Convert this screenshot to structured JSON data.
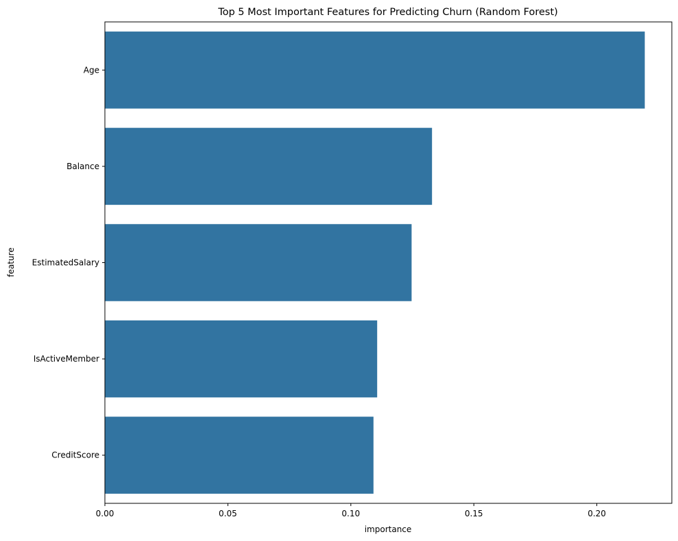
{
  "chart_data": {
    "type": "bar",
    "orientation": "horizontal",
    "title": "Top 5 Most Important Features for Predicting Churn (Random Forest)",
    "xlabel": "importance",
    "ylabel": "feature",
    "categories": [
      "Age",
      "Balance",
      "EstimatedSalary",
      "IsActiveMember",
      "CreditScore"
    ],
    "values": [
      0.2195,
      0.133,
      0.1247,
      0.1107,
      0.1092
    ],
    "xlim": [
      0,
      0.2305
    ],
    "xticks": [
      0.0,
      0.05,
      0.1,
      0.15,
      0.2
    ],
    "xtick_labels": [
      "0.00",
      "0.05",
      "0.10",
      "0.15",
      "0.20"
    ],
    "grid": false,
    "legend": "none",
    "bar_color": "#3274a1"
  }
}
